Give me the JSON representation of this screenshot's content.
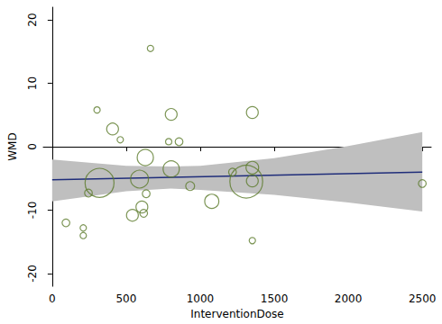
{
  "chart_data": {
    "type": "scatter",
    "x_label": "InterventionDose",
    "y_label": "WMD",
    "x": [
      664,
      303,
      408,
      460,
      804,
      787,
      857,
      1352,
      629,
      93,
      210,
      210,
      245,
      320,
      590,
      542,
      606,
      618,
      635,
      804,
      932,
      1078,
      1218,
      1352,
      1311,
      1352,
      1352,
      2500
    ],
    "values": [
      15.5,
      5.8,
      2.8,
      1.1,
      5.1,
      0.8,
      0.8,
      5.4,
      -1.7,
      -12.0,
      -12.8,
      -14.0,
      -7.3,
      -5.7,
      -5.1,
      -10.8,
      -9.5,
      -10.5,
      -7.4,
      -3.5,
      -6.2,
      -8.6,
      -4.0,
      -3.3,
      -5.5,
      -5.4,
      -14.8,
      -5.8
    ],
    "weights": [
      1,
      1,
      3.5,
      1,
      3.5,
      1,
      1.5,
      3.5,
      6.6,
      1.5,
      1,
      1,
      1.5,
      21,
      8,
      3.5,
      3.5,
      1.5,
      1.5,
      6.6,
      2,
      5,
      1.5,
      4,
      27,
      3.5,
      1,
      1.5
    ],
    "color": "#5b7a2b",
    "fit": {
      "x": [
        0,
        2500
      ],
      "y": [
        -5.2,
        -4.0
      ],
      "color": "#1f2d7a"
    },
    "ci": {
      "x": [
        0,
        500,
        800,
        1000,
        1500,
        2000,
        2500
      ],
      "lower": [
        -8.6,
        -7.0,
        -6.6,
        -6.8,
        -7.6,
        -8.8,
        -10.2
      ],
      "upper": [
        -2.0,
        -3.0,
        -3.1,
        -3.0,
        -1.8,
        0.1,
        2.3
      ],
      "color": "#bfbfbf"
    },
    "xlim": [
      -60,
      2560
    ],
    "xticks": [
      0,
      500,
      1000,
      1500,
      2000,
      2500
    ],
    "ylim": [
      -22,
      22
    ],
    "yticks": [
      -20,
      -10,
      0,
      10,
      20
    ],
    "grid": false
  }
}
